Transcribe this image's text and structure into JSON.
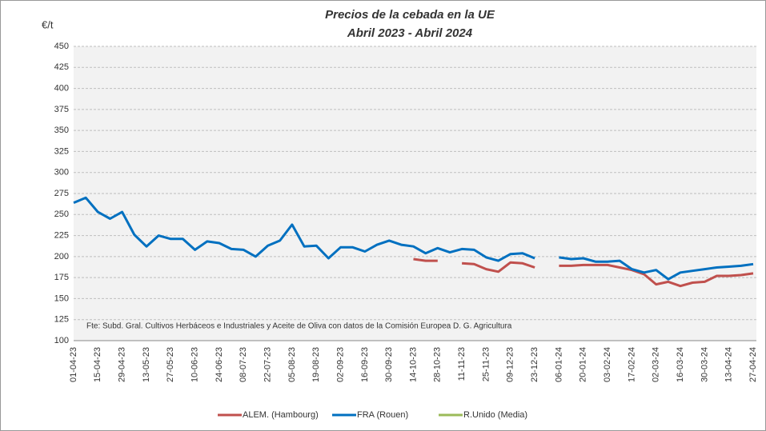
{
  "chart_data": {
    "type": "line",
    "title": "Precios de la cebada en la UE",
    "subtitle": "Abril 2023 - Abril 2024",
    "y_label": "€/t",
    "annotation": "Fte: Subd. Gral. Cultivos Herbáceos e Industriales y Aceite de Oliva con datos de la Comisión Europea D. G. Agricultura",
    "categories": [
      "01-04-23",
      null,
      "15-04-23",
      null,
      "29-04-23",
      null,
      "13-05-23",
      null,
      "27-05-23",
      null,
      "10-06-23",
      null,
      "24-06-23",
      null,
      "08-07-23",
      null,
      "22-07-23",
      null,
      "05-08-23",
      null,
      "19-08-23",
      null,
      "02-09-23",
      null,
      "16-09-23",
      null,
      "30-09-23",
      null,
      "14-10-23",
      null,
      "28-10-23",
      null,
      "11-11-23",
      null,
      "25-11-23",
      null,
      "09-12-23",
      null,
      "23-12-23",
      null,
      "06-01-24",
      null,
      "20-01-24",
      null,
      "03-02-24",
      null,
      "17-02-24",
      null,
      "02-03-24",
      null,
      "16-03-24",
      null,
      "30-03-24",
      null,
      "13-04-24",
      null,
      "27-04-24"
    ],
    "series": [
      {
        "name": "ALEM. (Hambourg)",
        "color": "#c0504d",
        "values": [
          null,
          null,
          null,
          null,
          null,
          null,
          null,
          null,
          null,
          null,
          null,
          null,
          null,
          null,
          null,
          null,
          null,
          null,
          null,
          null,
          null,
          null,
          null,
          null,
          null,
          null,
          null,
          null,
          197,
          195,
          195,
          null,
          192,
          191,
          185,
          182,
          193,
          192,
          187,
          null,
          189,
          189,
          190,
          190,
          190,
          187,
          184,
          179,
          167,
          170,
          165,
          169,
          170,
          177,
          177,
          178,
          180
        ]
      },
      {
        "name": "FRA (Rouen)",
        "color": "#0070c0",
        "values": [
          264,
          270,
          253,
          245,
          253,
          226,
          212,
          225,
          221,
          221,
          208,
          218,
          216,
          209,
          208,
          200,
          213,
          219,
          238,
          212,
          213,
          198,
          211,
          211,
          206,
          214,
          219,
          214,
          212,
          204,
          210,
          205,
          209,
          208,
          199,
          195,
          203,
          204,
          198,
          null,
          199,
          197,
          198,
          194,
          194,
          195,
          185,
          181,
          184,
          173,
          181,
          183,
          185,
          187,
          188,
          189,
          191
        ]
      },
      {
        "name": "R.Unido (Media)",
        "color": "#9bbb59",
        "values": [
          null,
          null,
          null,
          null,
          null,
          null,
          null,
          null,
          null,
          null,
          null,
          null,
          null,
          null,
          null,
          null,
          null,
          null,
          null,
          null,
          null,
          null,
          null,
          null,
          null,
          null,
          null,
          null,
          null,
          null,
          null,
          null,
          null,
          null,
          null,
          null,
          null,
          null,
          null,
          null,
          null,
          null,
          null,
          null,
          null,
          null,
          null,
          null,
          null,
          null,
          null,
          null,
          null,
          null,
          null,
          null,
          null
        ]
      }
    ],
    "ylim": [
      100,
      450
    ],
    "yticks": [
      100,
      125,
      150,
      175,
      200,
      225,
      250,
      275,
      300,
      325,
      350,
      375,
      400,
      425,
      450
    ],
    "grid": true
  }
}
